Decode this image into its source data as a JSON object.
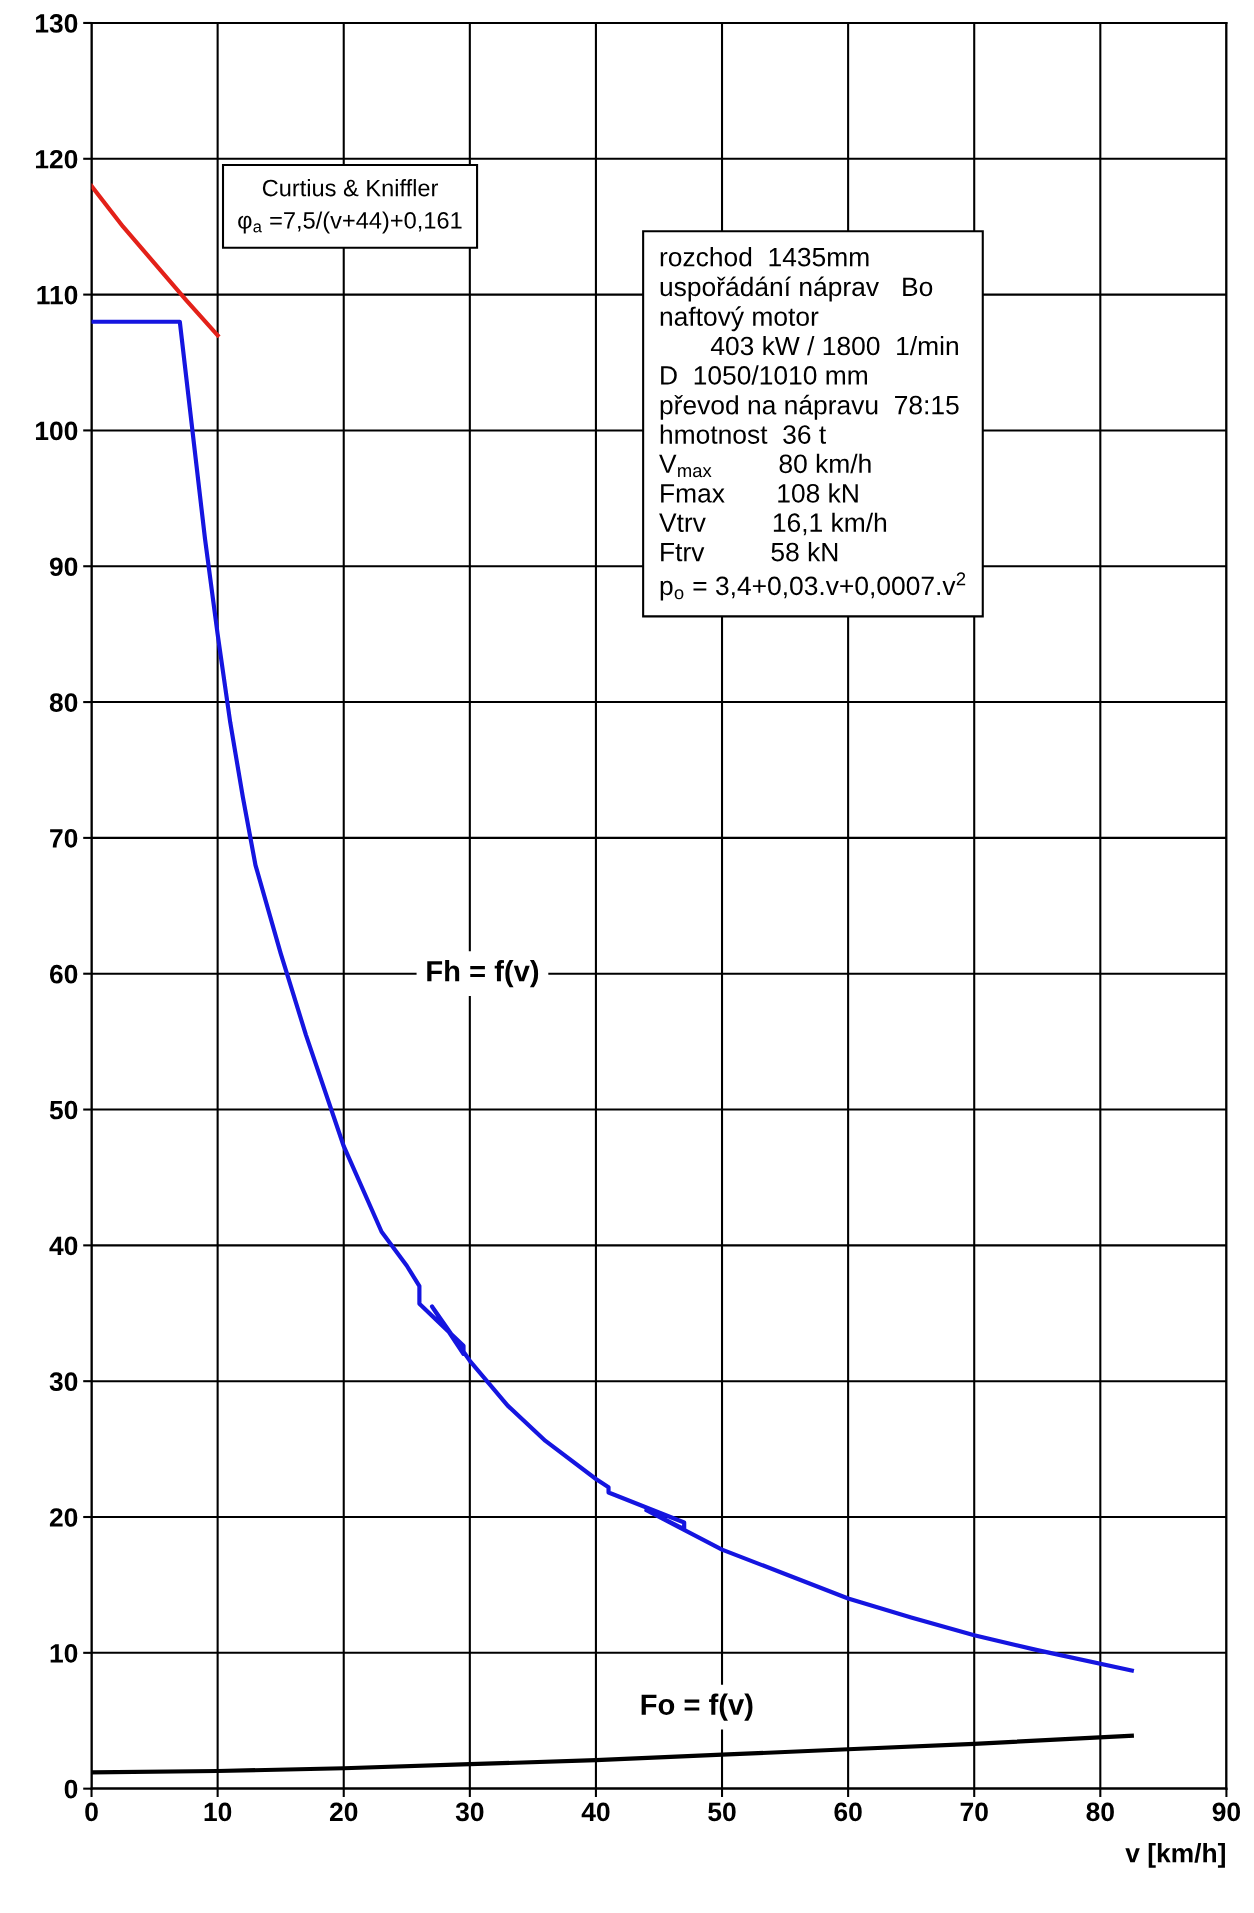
{
  "chart_data": {
    "type": "line",
    "xlabel": "v [km/h]",
    "xlim": [
      0,
      90
    ],
    "xticks": [
      0,
      10,
      20,
      30,
      40,
      50,
      60,
      70,
      80,
      90
    ],
    "ylim": [
      0,
      130
    ],
    "yticks": [
      0,
      10,
      20,
      30,
      40,
      50,
      60,
      70,
      80,
      90,
      100,
      110,
      120,
      130
    ],
    "grid": true,
    "legend": false,
    "marker": "none",
    "line_style": "solid",
    "series": [
      {
        "color": "#e32119",
        "x": [
          0,
          2.5,
          5,
          7.5,
          10
        ],
        "values": [
          118,
          115,
          112.3,
          109.6,
          107
        ]
      },
      {
        "color": "#1515e0",
        "x": [
          0,
          7,
          8,
          9,
          10,
          11,
          12,
          13,
          15,
          17,
          20,
          23,
          25,
          26,
          26,
          29.5,
          29.5,
          27,
          30,
          33,
          36,
          40,
          41,
          41,
          47,
          47,
          44,
          50,
          55,
          60,
          65,
          70,
          75,
          82.5
        ],
        "values": [
          108,
          108,
          100,
          92,
          85,
          78.5,
          73,
          68,
          61.5,
          55.5,
          47.3,
          41,
          38.5,
          37,
          35.7,
          32.6,
          32,
          35.5,
          31.5,
          28.2,
          25.6,
          22.8,
          22.2,
          21.8,
          19.6,
          19.1,
          20.5,
          17.6,
          15.8,
          14,
          12.6,
          11.3,
          10.2,
          8.7
        ]
      },
      {
        "color": "#000000",
        "x": [
          0,
          10,
          20,
          30,
          40,
          50,
          60,
          70,
          82.5
        ],
        "values": [
          1.2,
          1.3,
          1.5,
          1.8,
          2.1,
          2.5,
          2.9,
          3.3,
          3.9
        ]
      }
    ],
    "annotations": [
      "Curtius & Kniffler\nφ$_{a}$ =7,5/(v+44)+0,161",
      "rozchod  1435mm\nuspořádání náprav   Bo\nnaftový motor\n       403 kW / 1800  1/min\nD  1050/1010 mm\npřevod na nápravu  78:15\nhmotnost  36 t\nV$_{max}$         80 km/h\nFmax       108 kN\nVtrv         16,1 km/h\nFtrv         58 kN\np$_{o}$ = 3,4+0,03.v+0,0007.v$^{2}$",
      "Fh = f(v)",
      "Fo = f(v)"
    ]
  }
}
